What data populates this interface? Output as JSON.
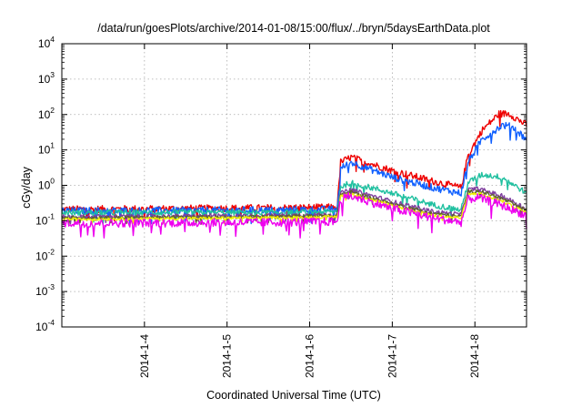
{
  "chart_data": {
    "type": "line",
    "title": "/data/run/goesPlots/archive/2014-01-08/15:00/flux/../bryn/5daysEarthData.plot",
    "xlabel": "Coordinated Universal Time (UTC)",
    "ylabel": "cGy/day",
    "y_scale": "log",
    "ylim": [
      0.0001,
      10000
    ],
    "y_ticks": [
      {
        "base": "10",
        "exp": "-4",
        "value": 0.0001
      },
      {
        "base": "10",
        "exp": "-3",
        "value": 0.001
      },
      {
        "base": "10",
        "exp": "-2",
        "value": 0.01
      },
      {
        "base": "10",
        "exp": "-1",
        "value": 0.1
      },
      {
        "base": "10",
        "exp": "0",
        "value": 1
      },
      {
        "base": "10",
        "exp": "1",
        "value": 10
      },
      {
        "base": "10",
        "exp": "2",
        "value": 100
      },
      {
        "base": "10",
        "exp": "3",
        "value": 1000
      },
      {
        "base": "10",
        "exp": "4",
        "value": 10000
      }
    ],
    "xlim": [
      "2014-01-03 00:00",
      "2014-01-08 15:00"
    ],
    "x_ticks": [
      {
        "label": "2014-1-4",
        "value": "2014-01-04 00:00"
      },
      {
        "label": "2014-1-5",
        "value": "2014-01-05 00:00"
      },
      {
        "label": "2014-1-6",
        "value": "2014-01-06 00:00"
      },
      {
        "label": "2014-1-7",
        "value": "2014-01-07 00:00"
      },
      {
        "label": "2014-1-8",
        "value": "2014-01-08 00:00"
      }
    ],
    "grid": true,
    "legend": "none",
    "series": [
      {
        "color": "#ee0000",
        "noise": 0.1,
        "points": [
          [
            "2014-01-03 00:00",
            0.21
          ],
          [
            "2014-01-05 12:00",
            0.23
          ],
          [
            "2014-01-06 08:00",
            0.24
          ],
          [
            "2014-01-06 09:00",
            4.5
          ],
          [
            "2014-01-06 12:00",
            6.2
          ],
          [
            "2014-01-07 00:00",
            2.6
          ],
          [
            "2014-01-07 12:00",
            1.3
          ],
          [
            "2014-01-07 20:00",
            0.85
          ],
          [
            "2014-01-07 22:00",
            7.0
          ],
          [
            "2014-01-08 02:00",
            35
          ],
          [
            "2014-01-08 07:00",
            105
          ],
          [
            "2014-01-08 10:00",
            105
          ],
          [
            "2014-01-08 15:00",
            50
          ]
        ]
      },
      {
        "color": "#1060ff",
        "noise": 0.1,
        "points": [
          [
            "2014-01-03 00:00",
            0.19
          ],
          [
            "2014-01-05 12:00",
            0.2
          ],
          [
            "2014-01-06 08:00",
            0.21
          ],
          [
            "2014-01-06 09:00",
            3.0
          ],
          [
            "2014-01-06 12:00",
            4.5
          ],
          [
            "2014-01-07 00:00",
            1.7
          ],
          [
            "2014-01-07 12:00",
            0.85
          ],
          [
            "2014-01-07 20:00",
            0.6
          ],
          [
            "2014-01-07 22:00",
            4.5
          ],
          [
            "2014-01-08 02:00",
            20
          ],
          [
            "2014-01-08 08:00",
            50
          ],
          [
            "2014-01-08 11:00",
            45
          ],
          [
            "2014-01-08 15:00",
            20
          ]
        ]
      },
      {
        "color": "#20c0a0",
        "noise": 0.08,
        "points": [
          [
            "2014-01-03 00:00",
            0.17
          ],
          [
            "2014-01-05 12:00",
            0.17
          ],
          [
            "2014-01-06 08:00",
            0.18
          ],
          [
            "2014-01-06 09:00",
            0.9
          ],
          [
            "2014-01-06 12:00",
            1.2
          ],
          [
            "2014-01-07 00:00",
            0.6
          ],
          [
            "2014-01-07 12:00",
            0.28
          ],
          [
            "2014-01-07 20:00",
            0.2
          ],
          [
            "2014-01-07 22:00",
            1.2
          ],
          [
            "2014-01-08 02:00",
            2.0
          ],
          [
            "2014-01-08 08:00",
            1.7
          ],
          [
            "2014-01-08 15:00",
            0.6
          ]
        ]
      },
      {
        "color": "#8040a0",
        "noise": 0.06,
        "points": [
          [
            "2014-01-03 00:00",
            0.13
          ],
          [
            "2014-01-05 12:00",
            0.14
          ],
          [
            "2014-01-06 08:00",
            0.15
          ],
          [
            "2014-01-06 09:00",
            0.6
          ],
          [
            "2014-01-06 12:00",
            0.75
          ],
          [
            "2014-01-07 00:00",
            0.35
          ],
          [
            "2014-01-07 12:00",
            0.18
          ],
          [
            "2014-01-07 20:00",
            0.15
          ],
          [
            "2014-01-07 22:00",
            0.75
          ],
          [
            "2014-01-08 01:00",
            0.8
          ],
          [
            "2014-01-08 08:00",
            0.5
          ],
          [
            "2014-01-08 15:00",
            0.22
          ]
        ]
      },
      {
        "color": "#606030",
        "noise": 0.05,
        "points": [
          [
            "2014-01-03 00:00",
            0.12
          ],
          [
            "2014-01-05 12:00",
            0.13
          ],
          [
            "2014-01-06 08:00",
            0.14
          ],
          [
            "2014-01-06 09:00",
            0.55
          ],
          [
            "2014-01-06 12:00",
            0.65
          ],
          [
            "2014-01-07 00:00",
            0.3
          ],
          [
            "2014-01-07 12:00",
            0.16
          ],
          [
            "2014-01-07 20:00",
            0.13
          ],
          [
            "2014-01-07 22:00",
            0.65
          ],
          [
            "2014-01-08 01:00",
            0.7
          ],
          [
            "2014-01-08 08:00",
            0.42
          ],
          [
            "2014-01-08 15:00",
            0.19
          ]
        ]
      },
      {
        "color": "#f0f000",
        "noise": 0.04,
        "points": [
          [
            "2014-01-03 00:00",
            0.11
          ],
          [
            "2014-01-05 12:00",
            0.12
          ],
          [
            "2014-01-06 08:00",
            0.13
          ],
          [
            "2014-01-06 09:00",
            0.5
          ],
          [
            "2014-01-06 12:00",
            0.58
          ],
          [
            "2014-01-07 00:00",
            0.27
          ],
          [
            "2014-01-07 12:00",
            0.14
          ],
          [
            "2014-01-07 20:00",
            0.12
          ],
          [
            "2014-01-07 22:00",
            0.55
          ],
          [
            "2014-01-08 01:00",
            0.6
          ],
          [
            "2014-01-08 08:00",
            0.35
          ],
          [
            "2014-01-08 15:00",
            0.17
          ]
        ]
      },
      {
        "color": "#ee00ee",
        "noise": 0.12,
        "points": [
          [
            "2014-01-03 00:00",
            0.085
          ],
          [
            "2014-01-05 12:00",
            0.09
          ],
          [
            "2014-01-06 08:00",
            0.095
          ],
          [
            "2014-01-06 09:00",
            0.4
          ],
          [
            "2014-01-06 12:00",
            0.5
          ],
          [
            "2014-01-07 00:00",
            0.22
          ],
          [
            "2014-01-07 12:00",
            0.12
          ],
          [
            "2014-01-07 20:00",
            0.09
          ],
          [
            "2014-01-07 22:00",
            0.4
          ],
          [
            "2014-01-08 01:00",
            0.45
          ],
          [
            "2014-01-08 08:00",
            0.27
          ],
          [
            "2014-01-08 15:00",
            0.14
          ]
        ]
      }
    ]
  }
}
